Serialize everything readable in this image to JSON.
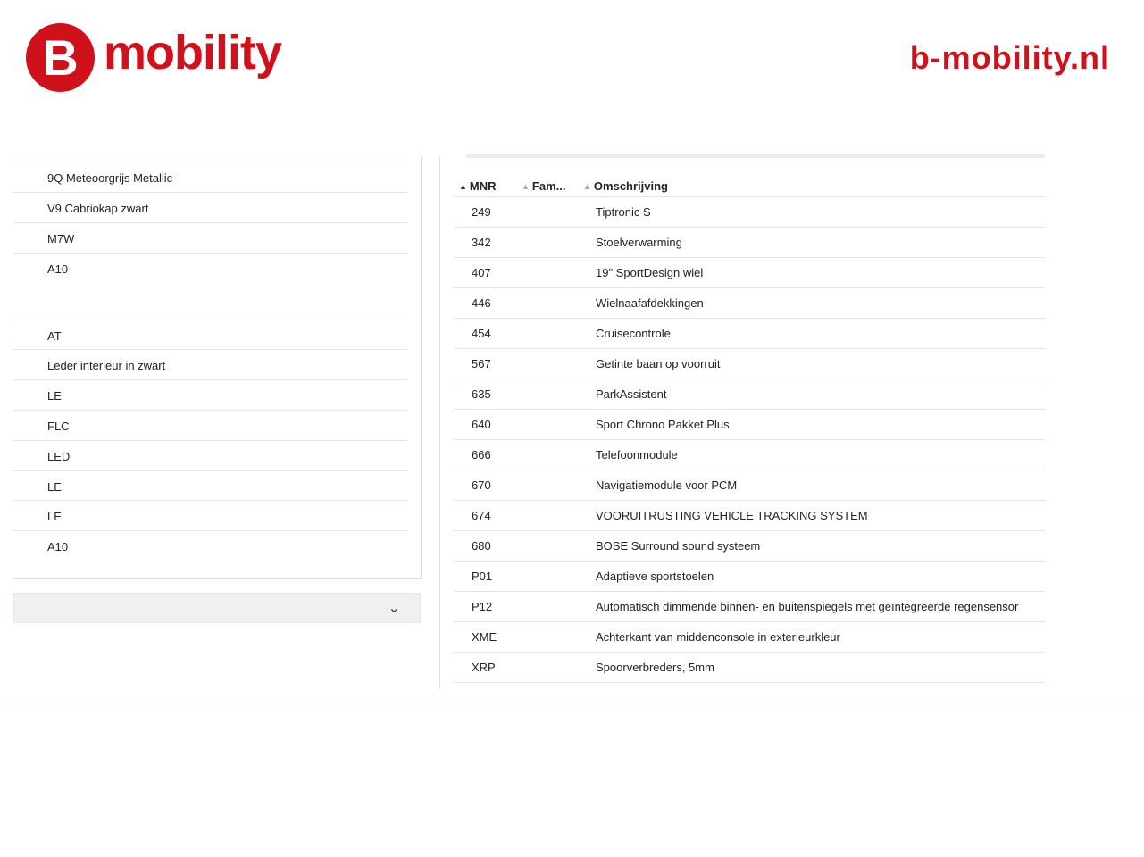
{
  "header": {
    "logo_letter": "B",
    "logo_word": "mobility",
    "site": "b-mobility.nl",
    "brand_color": "#d0101b"
  },
  "left_list": [
    "9Q Meteoorgrijs Metallic",
    "V9 Cabriokap zwart",
    "M7W",
    "A10",
    "AT",
    "Leder interieur in zwart",
    "LE",
    "FLC",
    "LED",
    "LE",
    "LE",
    "A10"
  ],
  "dropdown": {
    "icon": "chevron-down-icon"
  },
  "table": {
    "columns": [
      "MNR",
      "Fam...",
      "Omschrijving"
    ],
    "rows": [
      {
        "mnr": "249",
        "desc": "Tiptronic S"
      },
      {
        "mnr": "342",
        "desc": "Stoelverwarming"
      },
      {
        "mnr": "407",
        "desc": "19\" SportDesign wiel"
      },
      {
        "mnr": "446",
        "desc": "Wielnaafafdekkingen"
      },
      {
        "mnr": "454",
        "desc": "Cruisecontrole"
      },
      {
        "mnr": "567",
        "desc": "Getinte baan op voorruit"
      },
      {
        "mnr": "635",
        "desc": "ParkAssistent"
      },
      {
        "mnr": "640",
        "desc": "Sport Chrono Pakket Plus"
      },
      {
        "mnr": "666",
        "desc": "Telefoonmodule"
      },
      {
        "mnr": "670",
        "desc": "Navigatiemodule voor PCM"
      },
      {
        "mnr": "674",
        "desc": "VOORUITRUSTING VEHICLE TRACKING SYSTEM"
      },
      {
        "mnr": "680",
        "desc": "BOSE Surround sound systeem"
      },
      {
        "mnr": "P01",
        "desc": "Adaptieve sportstoelen"
      },
      {
        "mnr": "P12",
        "desc": "Automatisch dimmende binnen- en buitenspiegels met geïntegreerde regensensor"
      },
      {
        "mnr": "XME",
        "desc": "Achterkant van middenconsole in exterieurkleur"
      },
      {
        "mnr": "XRP",
        "desc": "Spoorverbreders, 5mm"
      }
    ]
  }
}
